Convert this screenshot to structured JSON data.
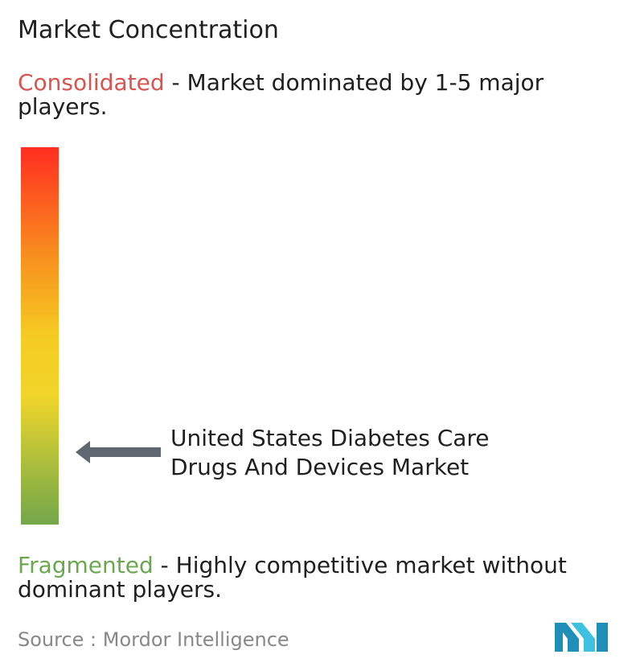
{
  "title": "Market Concentration",
  "consolidated": {
    "keyword": "Consolidated",
    "description": " - Market dominated by 1-5 major players.",
    "color": "#d9534f"
  },
  "fragmented": {
    "keyword": "Fragmented",
    "description": " - Highly competitive market without dominant players.",
    "color": "#6aa84f"
  },
  "scale": {
    "colors": [
      "#ff2d20",
      "#f7931e",
      "#f5cb22",
      "#9bb83f",
      "#74a64a"
    ]
  },
  "market": {
    "label": "United States Diabetes Care Drugs And Devices Market",
    "arrow_color": "#5f6770"
  },
  "source": "Source : Mordor Intelligence",
  "logo": {
    "colors": [
      "#1f8fb8",
      "#3fc1e0"
    ]
  },
  "chart_data": {
    "type": "gradient-scale",
    "top_label": "Consolidated",
    "bottom_label": "Fragmented",
    "indicator": {
      "label": "United States Diabetes Care Drugs And Devices Market",
      "position_fraction_from_top": 0.81
    }
  }
}
